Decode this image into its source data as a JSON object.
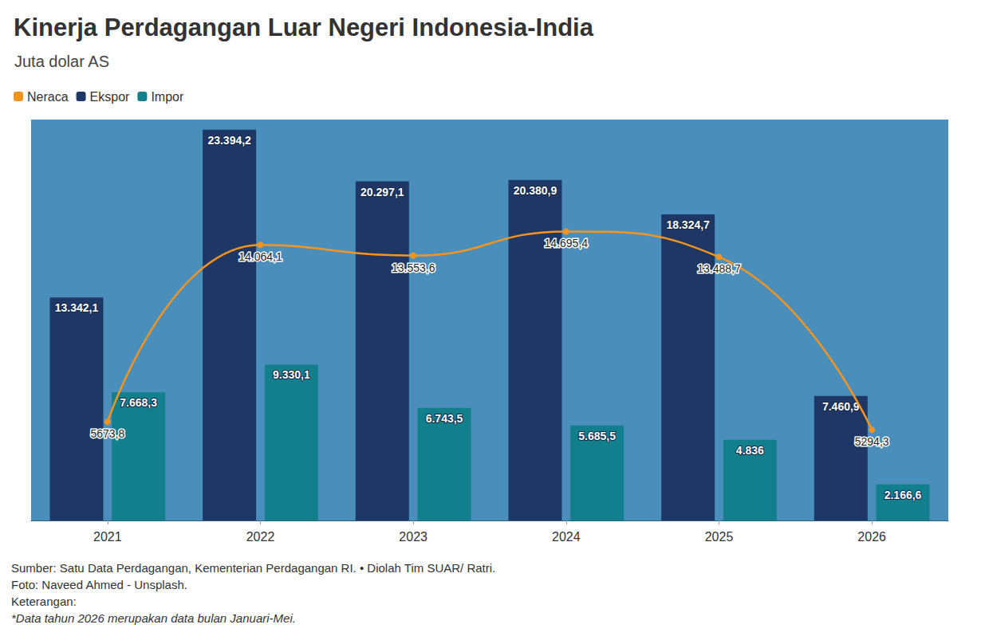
{
  "chart_data": {
    "type": "bar",
    "title": "Kinerja Perdagangan Luar Negeri Indonesia-India",
    "subtitle": "Juta dolar AS",
    "categories": [
      "2021",
      "2022",
      "2023",
      "2024",
      "2025",
      "2026"
    ],
    "series": [
      {
        "name": "Neraca",
        "type": "line",
        "axis": "y2",
        "color": "#f7941d",
        "marker": "circle",
        "line_style": "smooth",
        "values": [
          5673.8,
          14064.1,
          13553.6,
          14695.4,
          13488.7,
          5294.3
        ],
        "value_labels": [
          "5673,8",
          "14.064,1",
          "13.553,6",
          "14.695,4",
          "13.488,7",
          "5294,3"
        ]
      },
      {
        "name": "Ekspor",
        "type": "bar",
        "color": "#1e3764",
        "values": [
          13342.1,
          23394.2,
          20297.1,
          20380.9,
          18324.7,
          7460.9
        ],
        "value_labels": [
          "13.342,1",
          "23.394,2",
          "20.297,1",
          "20.380,9",
          "18.324,7",
          "7.460,9"
        ]
      },
      {
        "name": "Impor",
        "type": "bar",
        "color": "#127f8c",
        "values": [
          7668.3,
          9330.1,
          6743.5,
          5685.5,
          4836,
          2166.6
        ],
        "value_labels": [
          "7.668,3",
          "9.330,1",
          "6.743,5",
          "5.685,5",
          "4.836",
          "2.166,6"
        ]
      }
    ],
    "ylim": [
      0,
      24000
    ],
    "yticks": [
      0,
      24000
    ],
    "y2lim": [
      1000,
      20000
    ],
    "y2ticks": [
      1000,
      20000
    ],
    "tick_labels": "x",
    "grid": false,
    "legend": "top-left",
    "data_labels": true,
    "annotations": [
      "Sumber: Satu Data Perdagangan, Kementerian Perdagangan RI. • Diolah Tim SUAR/ Ratri.",
      "Foto: Naveed Ahmed - Unsplash.",
      "Keterangan:",
      "*Data tahun 2026 merupakan data bulan Januari-Mei."
    ]
  }
}
